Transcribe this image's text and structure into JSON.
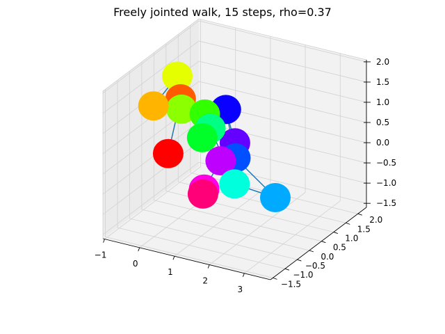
{
  "chart_data": {
    "type": "scatter",
    "projection": "3d",
    "title": "Freely jointed walk, 15 steps, rho=0.37",
    "xlabel": "",
    "ylabel": "",
    "zlabel": "",
    "xlim": [
      -1.05,
      3.75
    ],
    "ylim": [
      -1.6,
      2.35
    ],
    "zlim": [
      -1.6,
      2.05
    ],
    "x_ticks": [
      -1,
      0,
      1,
      2,
      3
    ],
    "y_ticks": [
      -1.5,
      -1.0,
      -0.5,
      0.0,
      0.5,
      1.0,
      1.5,
      2.0
    ],
    "z_ticks": [
      -1.5,
      -1.0,
      -0.5,
      0.0,
      0.5,
      1.0,
      1.5,
      2.0
    ],
    "x_tick_labels": [
      "−1",
      "0",
      "1",
      "2",
      "3"
    ],
    "y_tick_labels": [
      "−1.5",
      "−1.0",
      "−0.5",
      "0.0",
      "0.5",
      "1.0",
      "1.5",
      "2.0"
    ],
    "z_tick_labels": [
      "−1.5",
      "−1.0",
      "−0.5",
      "0.0",
      "0.5",
      "1.0",
      "1.5",
      "2.0"
    ],
    "grid": true,
    "colormap": "hsv",
    "walk_line_color": "#1f77b4",
    "points": [
      {
        "step": 0,
        "x": -0.05,
        "y": -0.35,
        "z": 0.15,
        "color": "#ff0000"
      },
      {
        "step": 1,
        "x": -0.25,
        "y": 0.45,
        "z": 1.1,
        "color": "#ff5a00"
      },
      {
        "step": 2,
        "x": -0.75,
        "y": 0.05,
        "z": 1.0,
        "color": "#ffb400"
      },
      {
        "step": 3,
        "x": -0.45,
        "y": 0.6,
        "z": 1.55,
        "color": "#e5ff00"
      },
      {
        "step": 4,
        "x": -0.05,
        "y": 0.2,
        "z": 1.0,
        "color": "#8cff00"
      },
      {
        "step": 5,
        "x": 0.65,
        "y": 0.15,
        "z": 1.05,
        "color": "#32ff00"
      },
      {
        "step": 6,
        "x": 0.75,
        "y": -0.1,
        "z": 0.6,
        "color": "#00ff28"
      },
      {
        "step": 7,
        "x": 0.95,
        "y": -0.05,
        "z": 0.85,
        "color": "#00ff82"
      },
      {
        "step": 8,
        "x": 1.85,
        "y": -0.35,
        "z": -0.2,
        "color": "#00ffdc"
      },
      {
        "step": 9,
        "x": 2.95,
        "y": -0.25,
        "z": -0.35,
        "color": "#00aaff"
      },
      {
        "step": 10,
        "x": 1.7,
        "y": -0.1,
        "z": 0.3,
        "color": "#0050ff"
      },
      {
        "step": 11,
        "x": 1.15,
        "y": 0.3,
        "z": 1.2,
        "color": "#0a00ff"
      },
      {
        "step": 12,
        "x": 1.55,
        "y": 0.1,
        "z": 0.55,
        "color": "#6400ff"
      },
      {
        "step": 13,
        "x": 1.35,
        "y": -0.2,
        "z": 0.2,
        "color": "#be00ff"
      },
      {
        "step": 14,
        "x": 1.05,
        "y": -0.45,
        "z": -0.45,
        "color": "#ff00e6"
      },
      {
        "step": 15,
        "x": 1.05,
        "y": -0.5,
        "z": -0.55,
        "color": "#ff0078"
      }
    ]
  }
}
